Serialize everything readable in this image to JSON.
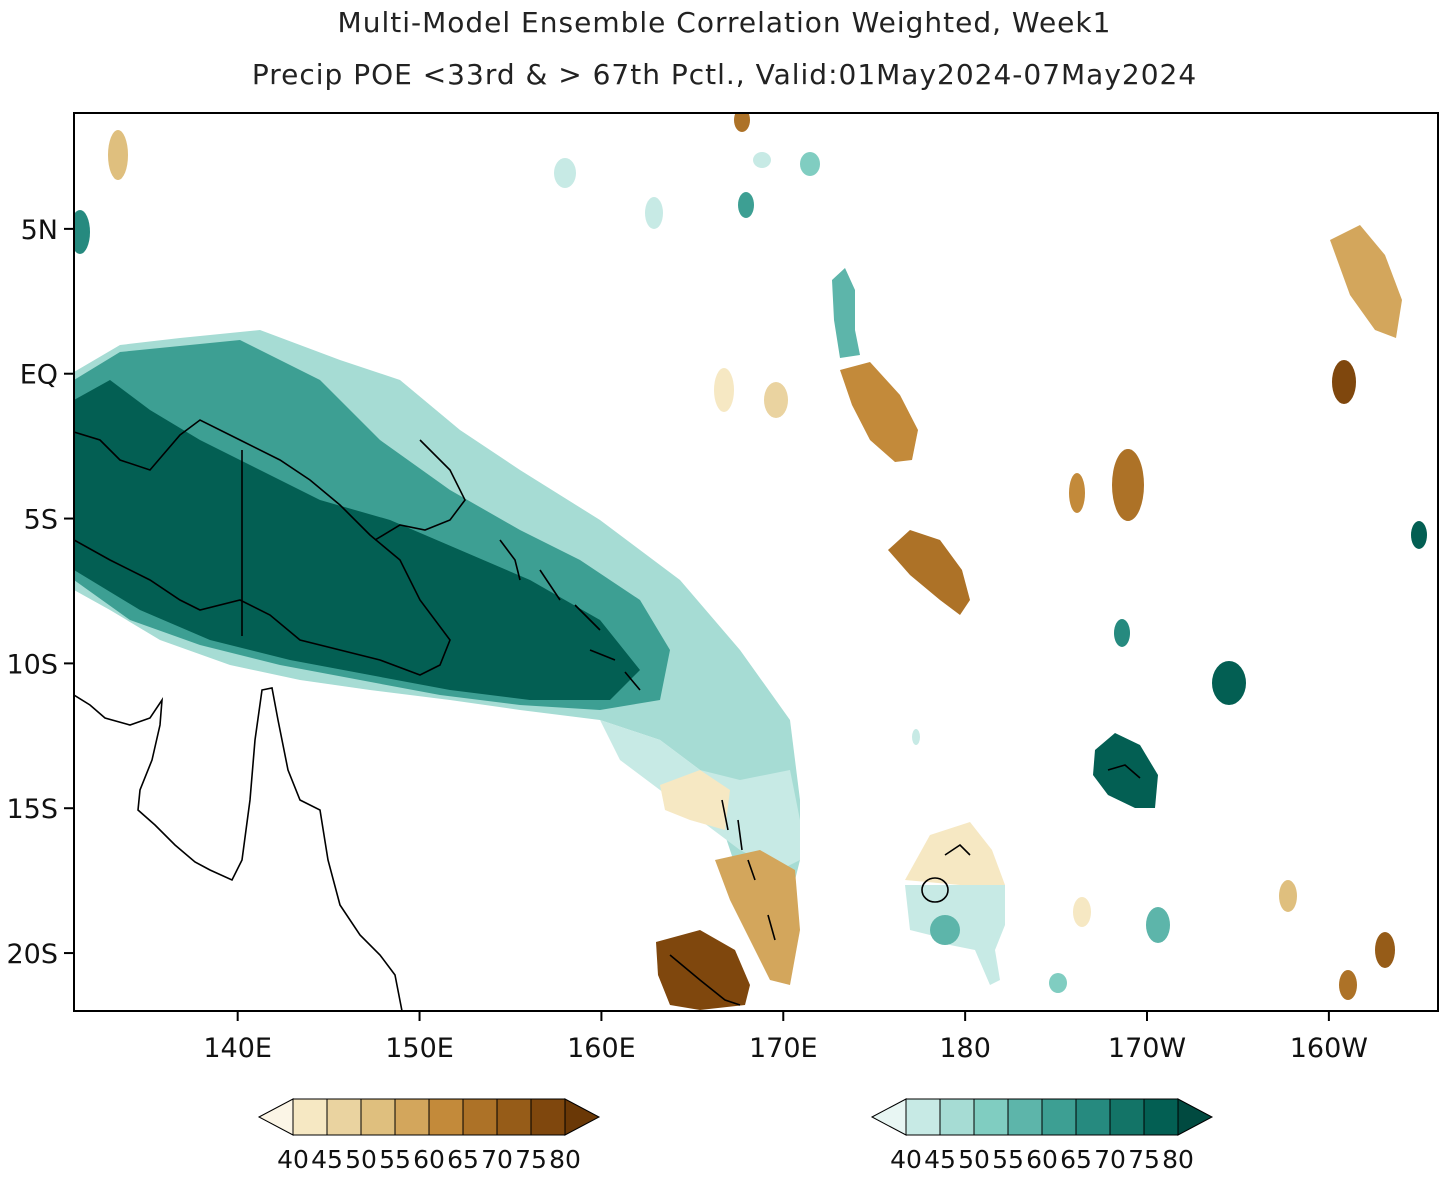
{
  "title_line1": "Multi-Model Ensemble Correlation Weighted, Week1",
  "title_line2": "Precip POE <33rd & > 67th Pctl., Valid:01May2024-07May2024",
  "map": {
    "lon_ticks": [
      {
        "label": "140E",
        "lon": 140
      },
      {
        "label": "150E",
        "lon": 150
      },
      {
        "label": "160E",
        "lon": 160
      },
      {
        "label": "170E",
        "lon": 170
      },
      {
        "label": "180",
        "lon": 180
      },
      {
        "label": "170W",
        "lon": 190
      },
      {
        "label": "160W",
        "lon": 200
      }
    ],
    "lat_ticks": [
      {
        "label": "5N",
        "lat": 5
      },
      {
        "label": "EQ",
        "lat": 0
      },
      {
        "label": "5S",
        "lat": -5
      },
      {
        "label": "10S",
        "lat": -10
      },
      {
        "label": "15S",
        "lat": -15
      },
      {
        "label": "20S",
        "lat": -20
      }
    ],
    "lon_range": [
      131,
      206
    ],
    "lat_range": [
      -22,
      9
    ]
  },
  "colorbars": {
    "below": {
      "colors": [
        "#f6e8c3",
        "#ead3a0",
        "#dfbf7e",
        "#d3a65c",
        "#c38a3a",
        "#ad7227",
        "#965c18",
        "#7f470d",
        "#6a3806"
      ],
      "labels": [
        "40",
        "45",
        "50",
        "55",
        "60",
        "65",
        "70",
        "75",
        "80"
      ]
    },
    "above": {
      "colors": [
        "#c7eae5",
        "#a6dcd4",
        "#80cdc1",
        "#5db5aa",
        "#3d9f93",
        "#268a7f",
        "#137467",
        "#035f53",
        "#014a40"
      ],
      "labels": [
        "40",
        "45",
        "50",
        "55",
        "60",
        "65",
        "70",
        "75",
        "80"
      ]
    }
  }
}
